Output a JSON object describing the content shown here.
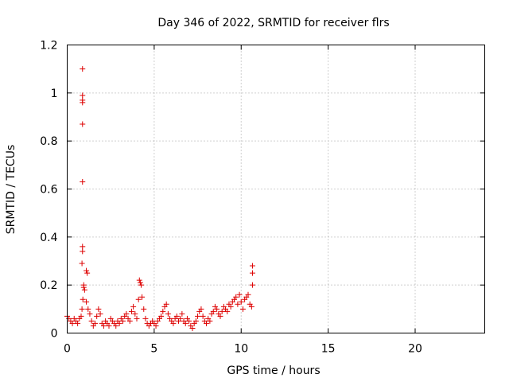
{
  "chart_data": {
    "type": "scatter",
    "title": "Day 346 of 2022, SRMTID for receiver flrs",
    "xlabel": "GPS time / hours",
    "ylabel": "SRMTID / TECUs",
    "xlim": [
      0,
      24
    ],
    "ylim": [
      0,
      1.2
    ],
    "x_ticks": [
      0,
      5,
      10,
      15,
      20
    ],
    "x_tick_labels": [
      "0",
      "5",
      "10",
      "15",
      "20"
    ],
    "y_ticks": [
      0,
      0.2,
      0.4,
      0.6,
      0.8,
      1.0,
      1.2
    ],
    "y_tick_labels": [
      "0",
      "0.2",
      "0.4",
      "0.6",
      "0.8",
      "1",
      "1.2"
    ],
    "grid": true,
    "marker": "+",
    "series": [
      {
        "name": "flrs",
        "color": "#dd0000",
        "x": [
          0.0,
          0.1,
          0.2,
          0.3,
          0.4,
          0.5,
          0.6,
          0.7,
          0.8,
          0.85,
          0.9,
          0.95,
          1.0,
          1.1,
          1.2,
          1.3,
          1.4,
          1.5,
          1.6,
          1.7,
          1.8,
          1.9,
          2.0,
          2.1,
          2.2,
          2.3,
          2.4,
          2.5,
          2.6,
          2.7,
          2.8,
          2.9,
          3.0,
          3.1,
          3.2,
          3.3,
          3.4,
          3.5,
          3.6,
          3.7,
          3.8,
          3.9,
          4.0,
          4.1,
          4.2,
          4.3,
          4.4,
          4.5,
          4.6,
          4.7,
          4.8,
          4.9,
          5.0,
          5.1,
          5.2,
          5.3,
          5.4,
          5.5,
          5.6,
          5.7,
          5.8,
          5.9,
          6.0,
          6.1,
          6.2,
          6.3,
          6.4,
          6.5,
          6.6,
          6.7,
          6.8,
          6.9,
          7.0,
          7.1,
          7.2,
          7.3,
          7.4,
          7.5,
          7.6,
          7.7,
          7.8,
          7.9,
          8.0,
          8.1,
          8.2,
          8.3,
          8.4,
          8.5,
          8.6,
          8.7,
          8.8,
          8.9,
          9.0,
          9.1,
          9.2,
          9.3,
          9.4,
          9.5,
          9.6,
          9.7,
          9.8,
          9.9,
          10.0,
          10.1,
          10.2,
          10.3,
          10.4,
          10.5,
          10.6,
          10.65,
          0.88,
          0.88,
          0.88,
          0.88,
          0.88,
          0.88,
          0.88,
          0.88,
          0.85,
          0.95,
          1.1,
          1.15,
          4.15,
          4.25,
          10.65,
          10.65
        ],
        "y": [
          0.07,
          0.06,
          0.05,
          0.04,
          0.06,
          0.05,
          0.04,
          0.06,
          0.07,
          0.1,
          0.14,
          0.2,
          0.18,
          0.13,
          0.1,
          0.08,
          0.05,
          0.03,
          0.04,
          0.07,
          0.1,
          0.08,
          0.04,
          0.03,
          0.05,
          0.04,
          0.03,
          0.06,
          0.05,
          0.04,
          0.03,
          0.05,
          0.04,
          0.06,
          0.05,
          0.07,
          0.08,
          0.06,
          0.05,
          0.09,
          0.11,
          0.08,
          0.06,
          0.14,
          0.21,
          0.15,
          0.1,
          0.06,
          0.04,
          0.03,
          0.04,
          0.05,
          0.04,
          0.03,
          0.05,
          0.06,
          0.07,
          0.09,
          0.11,
          0.12,
          0.08,
          0.06,
          0.05,
          0.04,
          0.06,
          0.07,
          0.05,
          0.06,
          0.08,
          0.05,
          0.04,
          0.06,
          0.05,
          0.03,
          0.02,
          0.04,
          0.05,
          0.07,
          0.09,
          0.1,
          0.07,
          0.05,
          0.04,
          0.06,
          0.05,
          0.08,
          0.09,
          0.11,
          0.1,
          0.08,
          0.07,
          0.09,
          0.11,
          0.1,
          0.09,
          0.12,
          0.11,
          0.13,
          0.14,
          0.15,
          0.12,
          0.16,
          0.13,
          0.1,
          0.14,
          0.15,
          0.16,
          0.12,
          0.11,
          0.2,
          1.1,
          0.99,
          0.97,
          0.96,
          0.87,
          0.63,
          0.36,
          0.34,
          0.29,
          0.19,
          0.26,
          0.25,
          0.22,
          0.2,
          0.28,
          0.25
        ]
      }
    ]
  }
}
